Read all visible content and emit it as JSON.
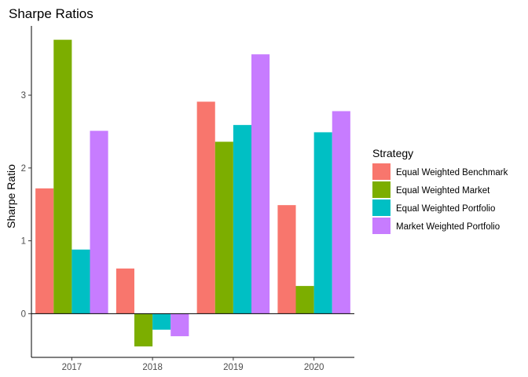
{
  "chart_data": {
    "type": "bar",
    "title": "Sharpe Ratios",
    "xlabel": "",
    "ylabel": "Sharpe Ratio",
    "categories": [
      "2017",
      "2018",
      "2019",
      "2020"
    ],
    "ylim": [
      -0.6,
      3.95
    ],
    "yticks": [
      0,
      1,
      2,
      3
    ],
    "legend": {
      "title": "Strategy",
      "position": "right"
    },
    "series": [
      {
        "name": "Equal Weighted Benchmark",
        "color": "#F8766D",
        "values": [
          1.72,
          0.62,
          2.91,
          1.49
        ]
      },
      {
        "name": "Equal Weighted Market",
        "color": "#7CAE00",
        "values": [
          3.76,
          -0.45,
          2.36,
          0.38
        ]
      },
      {
        "name": "Equal Weighted Portfolio",
        "color": "#00BFC4",
        "values": [
          0.88,
          -0.22,
          2.59,
          2.49
        ]
      },
      {
        "name": "Market Weighted Portfolio",
        "color": "#C77CFF",
        "values": [
          2.51,
          -0.31,
          3.56,
          2.78
        ]
      }
    ]
  }
}
